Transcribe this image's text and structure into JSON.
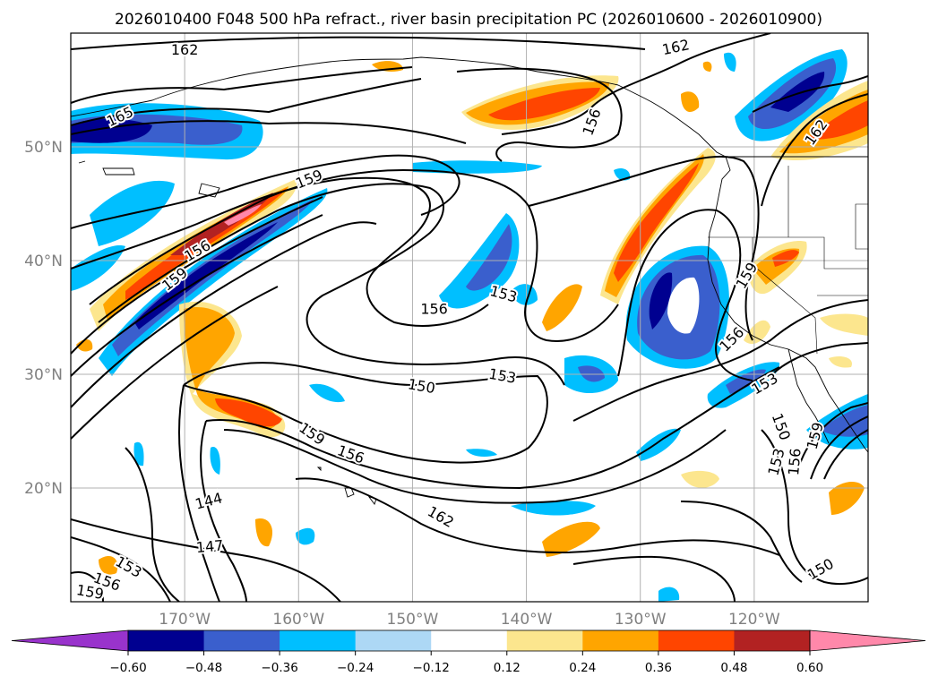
{
  "title": "2026010400 F048 500 hPa refract., river basin precipitation PC (2026010600 - 2026010900)",
  "colors": {
    "frame": "#000000",
    "grid": "#b0b0b0",
    "contour": "#000000",
    "coast": "#000000",
    "tick_label": "#808080"
  },
  "map": {
    "lon_range": [
      -180,
      -110
    ],
    "lat_range": [
      10,
      60
    ],
    "lon_ticks": [
      {
        "value": -170,
        "label": "170°W"
      },
      {
        "value": -160,
        "label": "160°W"
      },
      {
        "value": -150,
        "label": "150°W"
      },
      {
        "value": -140,
        "label": "140°W"
      },
      {
        "value": -130,
        "label": "130°W"
      },
      {
        "value": -120,
        "label": "120°W"
      }
    ],
    "lat_ticks": [
      {
        "value": 20,
        "label": "20°N"
      },
      {
        "value": 30,
        "label": "30°N"
      },
      {
        "value": 40,
        "label": "40°N"
      },
      {
        "value": 50,
        "label": "50°N"
      }
    ]
  },
  "colorbar": {
    "levels": [
      -0.6,
      -0.48,
      -0.36,
      -0.24,
      -0.12,
      0.12,
      0.24,
      0.36,
      0.48,
      0.6
    ],
    "tick_labels": [
      "−0.60",
      "−0.48",
      "−0.36",
      "−0.24",
      "−0.12",
      "0.12",
      "0.24",
      "0.36",
      "0.48",
      "0.60"
    ],
    "colors": [
      "#9933cc",
      "#000090",
      "#3a5fcd",
      "#00bfff",
      "#add8f5",
      "#ffffff",
      "#fce68e",
      "#ffa500",
      "#ff4500",
      "#b22222",
      "#ff88aa"
    ]
  },
  "contour_labels": [
    {
      "text": "162",
      "lon": -170.0,
      "lat": 58.6,
      "rot": 0
    },
    {
      "text": "162",
      "lon": -126.9,
      "lat": 58.8,
      "rot": -12
    },
    {
      "text": "165",
      "lon": -175.7,
      "lat": 52.7,
      "rot": -25
    },
    {
      "text": "159",
      "lon": -159.1,
      "lat": 47.2,
      "rot": -22
    },
    {
      "text": "156",
      "lon": -168.9,
      "lat": 40.9,
      "rot": -30
    },
    {
      "text": "159",
      "lon": -170.9,
      "lat": 38.4,
      "rot": -38
    },
    {
      "text": "156",
      "lon": -148.1,
      "lat": 35.8,
      "rot": 0
    },
    {
      "text": "153",
      "lon": -142.0,
      "lat": 37.1,
      "rot": 15
    },
    {
      "text": "156",
      "lon": -134.3,
      "lat": 52.2,
      "rot": -70
    },
    {
      "text": "162",
      "lon": -114.6,
      "lat": 51.3,
      "rot": -55
    },
    {
      "text": "159",
      "lon": -120.7,
      "lat": 38.7,
      "rot": -60
    },
    {
      "text": "156",
      "lon": -122.0,
      "lat": 33.1,
      "rot": -45
    },
    {
      "text": "153",
      "lon": -119.1,
      "lat": 29.2,
      "rot": -30
    },
    {
      "text": "153",
      "lon": -142.1,
      "lat": 29.9,
      "rot": 10
    },
    {
      "text": "150",
      "lon": -149.2,
      "lat": 29.0,
      "rot": 10
    },
    {
      "text": "159",
      "lon": -158.8,
      "lat": 24.8,
      "rot": 35
    },
    {
      "text": "156",
      "lon": -155.4,
      "lat": 23.0,
      "rot": 20
    },
    {
      "text": "150",
      "lon": -117.6,
      "lat": 25.4,
      "rot": 70
    },
    {
      "text": "153",
      "lon": -118.1,
      "lat": 22.3,
      "rot": -75
    },
    {
      "text": "156",
      "lon": -116.5,
      "lat": 22.3,
      "rot": -85
    },
    {
      "text": "159",
      "lon": -114.7,
      "lat": 24.6,
      "rot": -75
    },
    {
      "text": "144",
      "lon": -167.9,
      "lat": 18.9,
      "rot": -15
    },
    {
      "text": "147",
      "lon": -167.8,
      "lat": 14.9,
      "rot": -5
    },
    {
      "text": "162",
      "lon": -147.5,
      "lat": 17.5,
      "rot": 30
    },
    {
      "text": "150",
      "lon": -114.2,
      "lat": 12.9,
      "rot": -30
    },
    {
      "text": "153",
      "lon": -174.9,
      "lat": 13.1,
      "rot": 30
    },
    {
      "text": "156",
      "lon": -176.8,
      "lat": 11.8,
      "rot": 20
    },
    {
      "text": "159",
      "lon": -178.3,
      "lat": 10.9,
      "rot": 10
    }
  ]
}
